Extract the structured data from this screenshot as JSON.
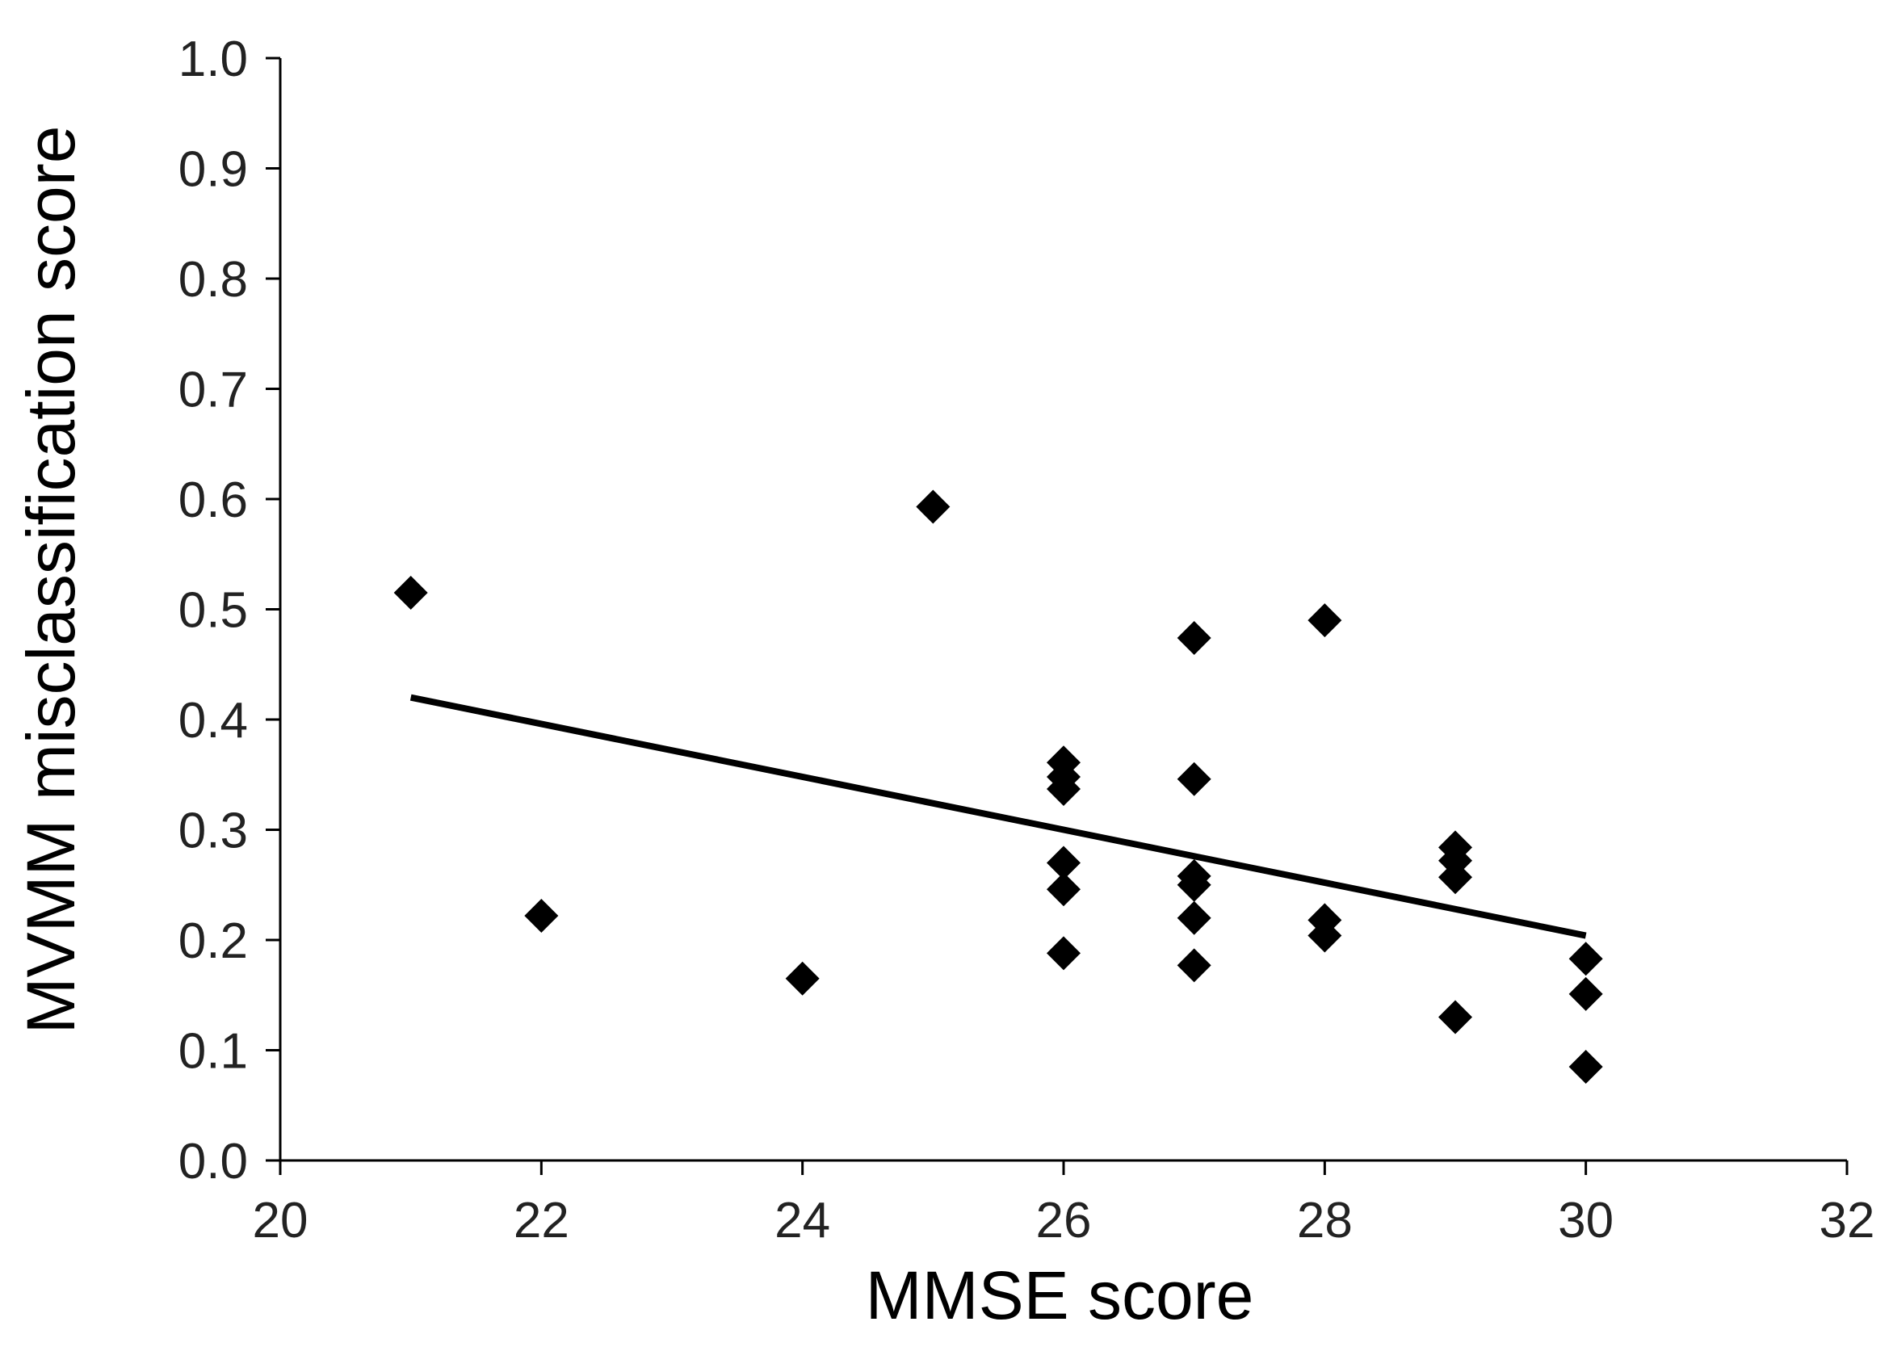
{
  "chart_data": {
    "type": "scatter",
    "title": "",
    "xlabel": "MMSE score",
    "ylabel": "MVMM misclassification score",
    "xlim": [
      20,
      32
    ],
    "ylim": [
      0.0,
      1.0
    ],
    "x_ticks": [
      20,
      22,
      24,
      26,
      28,
      30,
      32
    ],
    "x_tick_labels": [
      "20",
      "22",
      "24",
      "26",
      "28",
      "30",
      "32"
    ],
    "y_ticks": [
      0.0,
      0.1,
      0.2,
      0.3,
      0.4,
      0.5,
      0.6,
      0.7,
      0.8,
      0.9,
      1.0
    ],
    "y_tick_labels": [
      "0.0",
      "0.1",
      "0.2",
      "0.3",
      "0.4",
      "0.5",
      "0.6",
      "0.7",
      "0.8",
      "0.9",
      "1.0"
    ],
    "grid": false,
    "legend": "none",
    "marker": "diamond",
    "marker_color": "#000000",
    "series": [
      {
        "points": [
          {
            "x": 21,
            "y": 0.515
          },
          {
            "x": 22,
            "y": 0.222
          },
          {
            "x": 24,
            "y": 0.165
          },
          {
            "x": 25,
            "y": 0.593
          },
          {
            "x": 26,
            "y": 0.361
          },
          {
            "x": 26,
            "y": 0.348
          },
          {
            "x": 26,
            "y": 0.337
          },
          {
            "x": 26,
            "y": 0.27
          },
          {
            "x": 26,
            "y": 0.246
          },
          {
            "x": 26,
            "y": 0.188
          },
          {
            "x": 27,
            "y": 0.474
          },
          {
            "x": 27,
            "y": 0.346
          },
          {
            "x": 27,
            "y": 0.258
          },
          {
            "x": 27,
            "y": 0.25
          },
          {
            "x": 27,
            "y": 0.22
          },
          {
            "x": 27,
            "y": 0.177
          },
          {
            "x": 28,
            "y": 0.49
          },
          {
            "x": 28,
            "y": 0.218
          },
          {
            "x": 28,
            "y": 0.204
          },
          {
            "x": 29,
            "y": 0.284
          },
          {
            "x": 29,
            "y": 0.272
          },
          {
            "x": 29,
            "y": 0.257
          },
          {
            "x": 29,
            "y": 0.13
          },
          {
            "x": 30,
            "y": 0.183
          },
          {
            "x": 30,
            "y": 0.151
          },
          {
            "x": 30,
            "y": 0.085
          }
        ]
      }
    ],
    "trendline": {
      "x": [
        21,
        30
      ],
      "y": [
        0.42,
        0.204
      ],
      "color": "#000000"
    }
  }
}
